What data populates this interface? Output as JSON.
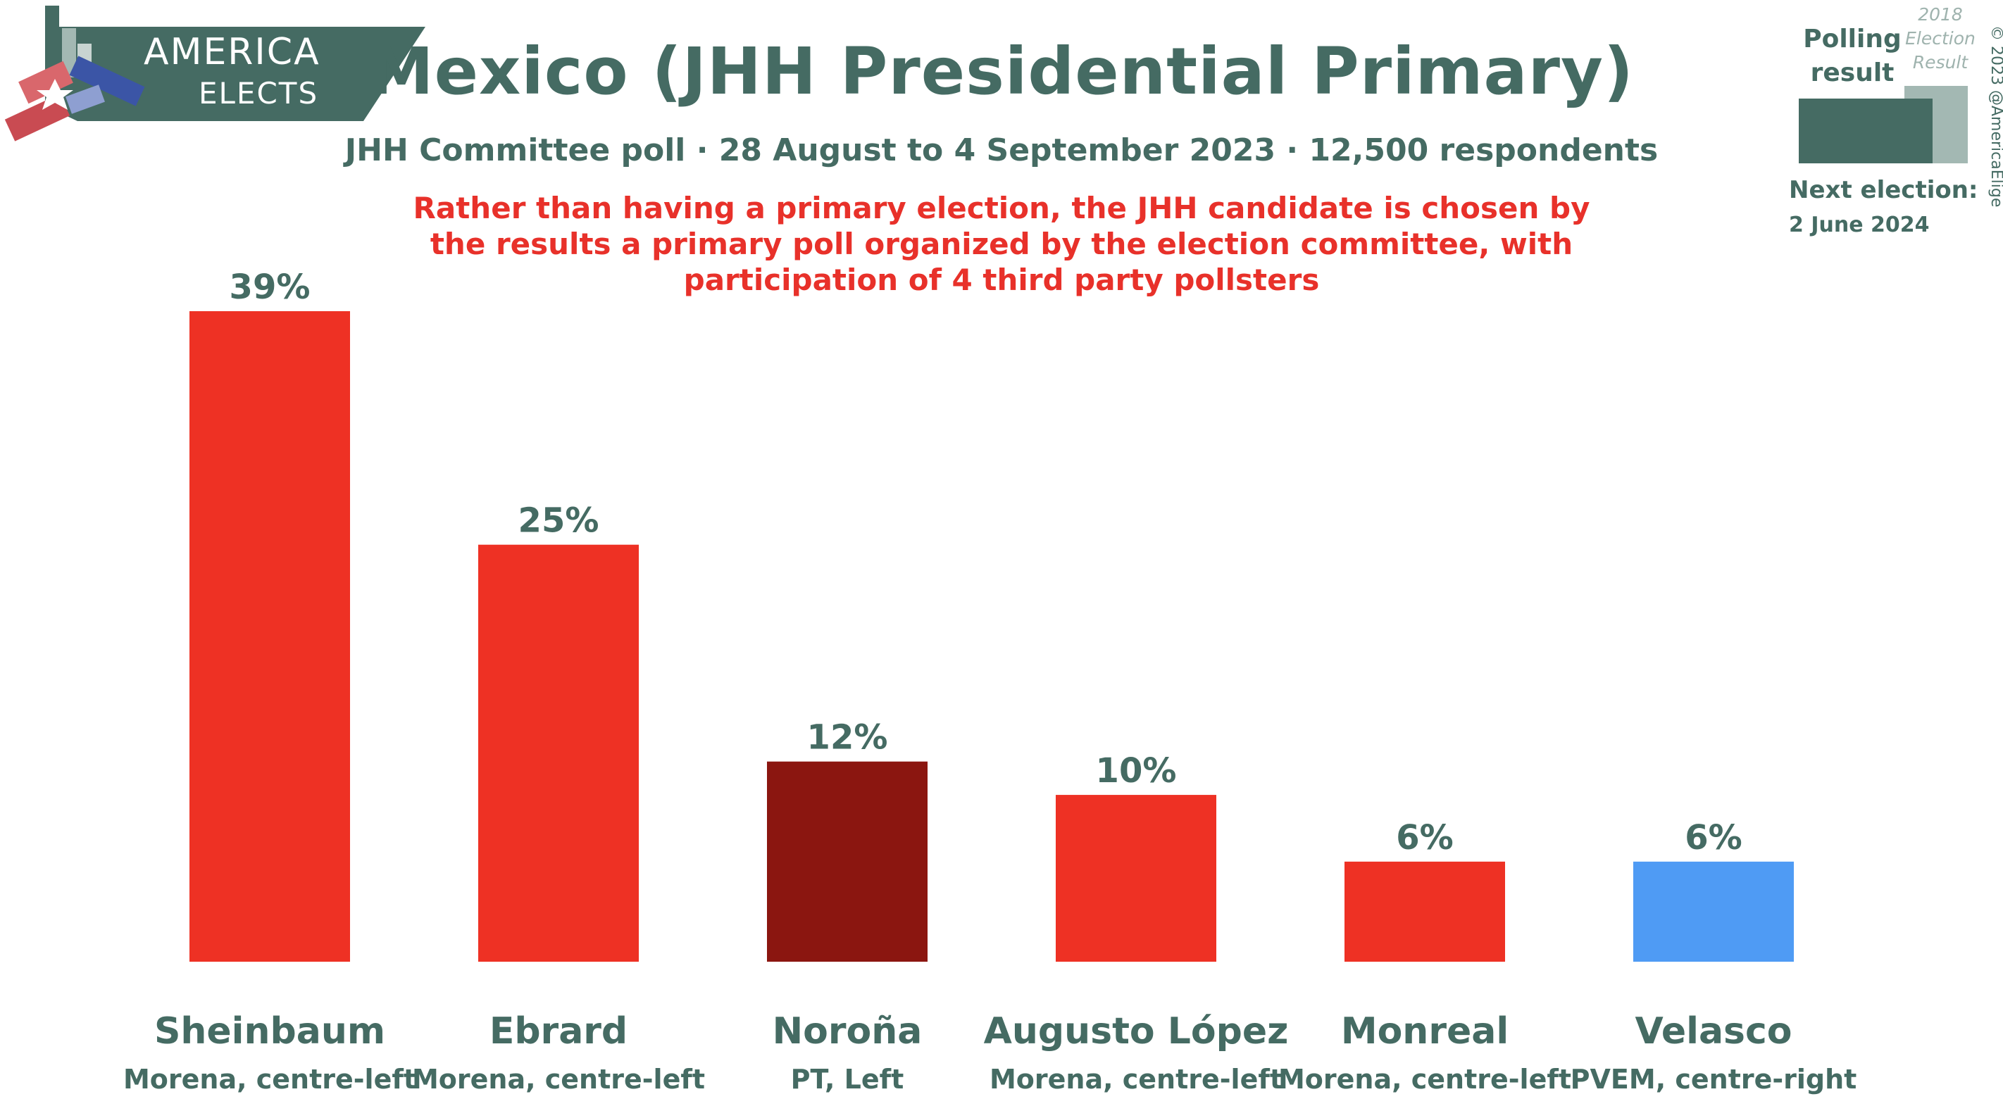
{
  "header": {
    "title": "Mexico (JHH Presidential Primary)",
    "subtitle": "JHH Committee poll · 28 August to 4 September 2023 · 12,500 respondents",
    "note": "Rather than having a primary election, the JHH candidate is chosen by the results a primary poll organized by the election committee, with participation of 4 third party pollsters"
  },
  "logo": {
    "line1": "AMERICA",
    "line2": "ELECTS"
  },
  "legend": {
    "polling_label": "Polling result",
    "election_label": "2018 Election Result",
    "next_election_label": "Next election:",
    "next_election_date": "2 June 2024",
    "copyright": "© 2023 @AmericaElige"
  },
  "colors": {
    "brand": "#456b63",
    "brand_light": "#a3b8b3",
    "note": "#e8312a",
    "morena": "#ee3124",
    "pt": "#8b1610",
    "pvem": "#4f9bf4"
  },
  "chart_data": {
    "type": "bar",
    "title": "Mexico (JHH Presidential Primary)",
    "ylim": [
      0,
      39
    ],
    "categories": [
      "Sheinbaum",
      "Ebrard",
      "Noroña",
      "Augusto López",
      "Monreal",
      "Velasco"
    ],
    "parties": [
      "Morena, centre-left",
      "Morena, centre-left",
      "PT, Left",
      "Morena, centre-left",
      "Morena, centre-left",
      "PVEM, centre-right"
    ],
    "values": [
      39,
      25,
      12,
      10,
      6,
      6
    ],
    "value_labels": [
      "39%",
      "25%",
      "12%",
      "10%",
      "6%",
      "6%"
    ],
    "bar_colors": [
      "#ee3124",
      "#ee3124",
      "#8b1610",
      "#ee3124",
      "#ee3124",
      "#4f9bf4"
    ]
  }
}
